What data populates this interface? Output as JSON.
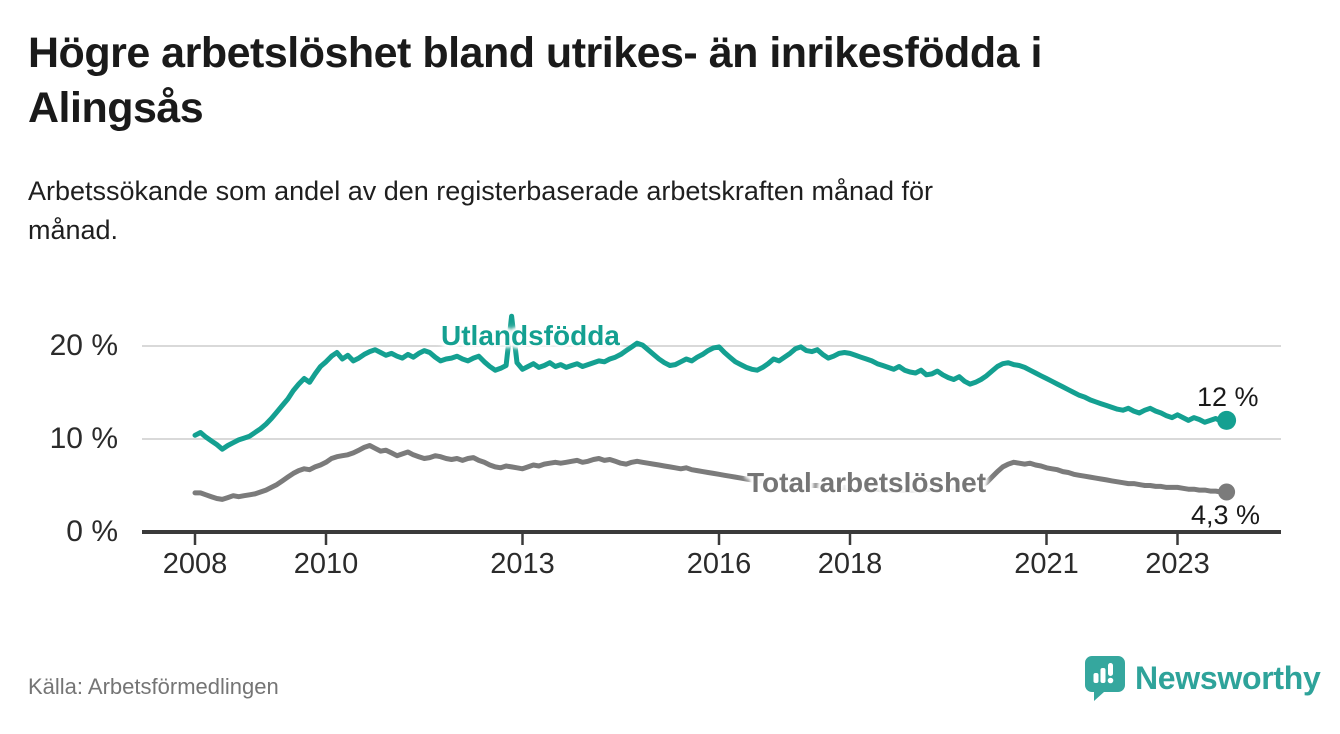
{
  "title": {
    "line1": "Högre arbetslöshet bland utrikes- än inrikesfödda i",
    "line2": "Alingsås"
  },
  "subtitle": {
    "line1": "Arbetssökande som andel av den registerbaserade arbetskraften månad för",
    "line2": "månad."
  },
  "source": "Källa: Arbetsförmedlingen",
  "logo": {
    "text": "Newsworthy",
    "icon": "newsworthy-speech-bubble-bar-chart-icon"
  },
  "colors": {
    "series_utlandsfodda": "#14a091",
    "series_total": "#7b7b7b",
    "gridline": "#d9d9d9",
    "axis": "#3a3a3a",
    "text_dark": "#1a1a1a",
    "text_gray": "#757575",
    "logo_teal": "#2ea39a"
  },
  "chart_data": {
    "type": "line",
    "title": "Högre arbetslöshet bland utrikes- än inrikesfödda i Alingsås",
    "xlabel": "",
    "ylabel": "Arbetssökande som andel av den registerbaserade arbetskraften (%)",
    "xlim": [
      2008,
      2023.83
    ],
    "ylim": [
      0,
      23
    ],
    "grid": "horizontal",
    "legend_position": "inline-labels",
    "x_ticks": [
      2008,
      2010,
      2013,
      2016,
      2018,
      2021,
      2023
    ],
    "x_tick_labels": [
      "2008",
      "2010",
      "2013",
      "2016",
      "2018",
      "2021",
      "2023"
    ],
    "y_ticks": [
      {
        "value": 0,
        "label": "0 %"
      },
      {
        "value": 10,
        "label": "10 %"
      },
      {
        "value": 20,
        "label": "20 %"
      }
    ],
    "series": [
      {
        "name": "Total arbetslöshet",
        "color": "#7b7b7b",
        "end_label": "4,3 %",
        "end_value": 4.3,
        "start_year": 2008,
        "interval": "monthly",
        "values": [
          4.2,
          4.2,
          4.0,
          3.8,
          3.6,
          3.5,
          3.7,
          3.9,
          3.8,
          3.9,
          4.0,
          4.1,
          4.3,
          4.5,
          4.8,
          5.1,
          5.5,
          5.9,
          6.3,
          6.6,
          6.8,
          6.7,
          7.0,
          7.2,
          7.5,
          7.9,
          8.1,
          8.2,
          8.3,
          8.5,
          8.8,
          9.1,
          9.3,
          9.0,
          8.7,
          8.8,
          8.5,
          8.2,
          8.4,
          8.6,
          8.3,
          8.1,
          7.9,
          8.0,
          8.2,
          8.1,
          7.9,
          7.8,
          7.9,
          7.7,
          7.9,
          8.0,
          7.7,
          7.5,
          7.2,
          7.0,
          6.9,
          7.1,
          7.0,
          6.9,
          6.8,
          7.0,
          7.2,
          7.1,
          7.3,
          7.4,
          7.5,
          7.4,
          7.5,
          7.6,
          7.7,
          7.5,
          7.6,
          7.8,
          7.9,
          7.7,
          7.8,
          7.6,
          7.4,
          7.3,
          7.5,
          7.6,
          7.5,
          7.4,
          7.3,
          7.2,
          7.1,
          7.0,
          6.9,
          6.8,
          6.9,
          6.7,
          6.6,
          6.5,
          6.4,
          6.3,
          6.2,
          6.1,
          6.0,
          5.9,
          5.8,
          5.7,
          5.6,
          5.5,
          5.5,
          5.4,
          5.4,
          5.3,
          5.3,
          5.2,
          5.2,
          5.1,
          5.1,
          5.0,
          5.0,
          4.9,
          4.9,
          4.8,
          4.8,
          4.8,
          4.8,
          4.7,
          4.7,
          4.6,
          4.6,
          4.6,
          4.5,
          4.5,
          4.5,
          4.5,
          4.5,
          4.5,
          4.5,
          4.6,
          4.6,
          4.6,
          4.7,
          4.7,
          4.7,
          4.8,
          4.8,
          4.8,
          4.9,
          4.9,
          5.0,
          5.3,
          5.9,
          6.5,
          7.0,
          7.3,
          7.5,
          7.4,
          7.3,
          7.4,
          7.2,
          7.1,
          6.9,
          6.8,
          6.7,
          6.5,
          6.4,
          6.2,
          6.1,
          6.0,
          5.9,
          5.8,
          5.7,
          5.6,
          5.5,
          5.4,
          5.3,
          5.2,
          5.2,
          5.1,
          5.0,
          5.0,
          4.9,
          4.9,
          4.8,
          4.8,
          4.8,
          4.7,
          4.6,
          4.6,
          4.5,
          4.5,
          4.4,
          4.4,
          4.3,
          4.3
        ]
      },
      {
        "name": "Utlandsfödda",
        "color": "#14a091",
        "end_label": "12 %",
        "end_value": 12,
        "start_year": 2008,
        "interval": "monthly",
        "values": [
          10.4,
          10.7,
          10.2,
          9.8,
          9.4,
          8.9,
          9.3,
          9.6,
          9.9,
          10.1,
          10.3,
          10.7,
          11.1,
          11.6,
          12.2,
          12.9,
          13.6,
          14.3,
          15.2,
          15.9,
          16.5,
          16.1,
          17.0,
          17.8,
          18.3,
          18.9,
          19.3,
          18.6,
          19.0,
          18.4,
          18.7,
          19.1,
          19.4,
          19.6,
          19.3,
          19.0,
          19.2,
          18.9,
          18.7,
          19.1,
          18.8,
          19.2,
          19.5,
          19.3,
          18.8,
          18.4,
          18.6,
          18.7,
          18.9,
          18.6,
          18.4,
          18.7,
          18.9,
          18.3,
          17.8,
          17.4,
          17.6,
          17.9,
          23.2,
          18.2,
          17.5,
          17.8,
          18.1,
          17.7,
          17.9,
          18.2,
          17.8,
          18.0,
          17.7,
          17.9,
          18.1,
          17.8,
          18.0,
          18.2,
          18.4,
          18.3,
          18.6,
          18.8,
          19.1,
          19.5,
          19.9,
          20.3,
          20.1,
          19.6,
          19.1,
          18.6,
          18.2,
          17.9,
          18.0,
          18.3,
          18.6,
          18.4,
          18.8,
          19.1,
          19.5,
          19.8,
          19.9,
          19.3,
          18.8,
          18.3,
          18.0,
          17.7,
          17.5,
          17.4,
          17.7,
          18.1,
          18.6,
          18.4,
          18.8,
          19.2,
          19.7,
          19.9,
          19.5,
          19.4,
          19.6,
          19.1,
          18.7,
          18.9,
          19.2,
          19.3,
          19.2,
          19.0,
          18.8,
          18.6,
          18.4,
          18.1,
          17.9,
          17.7,
          17.5,
          17.8,
          17.4,
          17.2,
          17.1,
          17.4,
          16.9,
          17.0,
          17.3,
          16.9,
          16.6,
          16.4,
          16.7,
          16.2,
          15.9,
          16.1,
          16.4,
          16.8,
          17.3,
          17.8,
          18.1,
          18.2,
          18.0,
          17.9,
          17.7,
          17.4,
          17.1,
          16.8,
          16.5,
          16.2,
          15.9,
          15.6,
          15.3,
          15.0,
          14.7,
          14.5,
          14.2,
          14.0,
          13.8,
          13.6,
          13.4,
          13.2,
          13.1,
          13.3,
          13.0,
          12.8,
          13.1,
          13.3,
          13.0,
          12.8,
          12.5,
          12.3,
          12.6,
          12.3,
          12.0,
          12.3,
          12.1,
          11.8,
          12.0,
          12.2,
          11.9,
          12.0
        ]
      }
    ]
  }
}
